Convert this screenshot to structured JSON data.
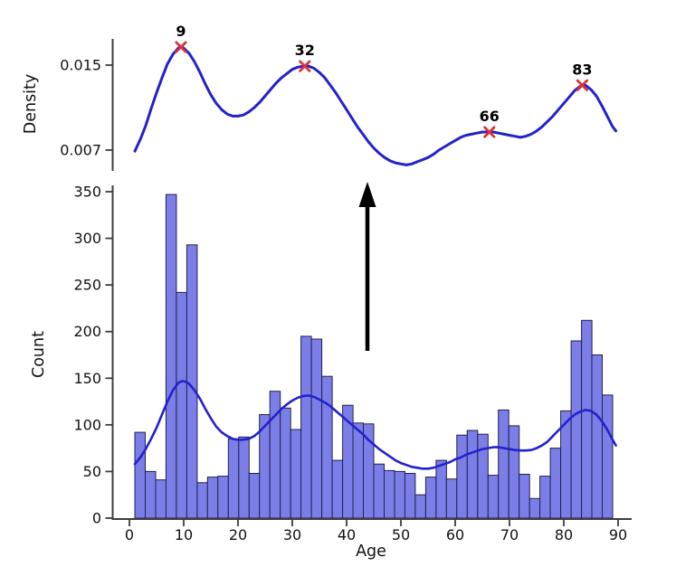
{
  "figure": {
    "background": "#ffffff"
  },
  "annotations": {
    "arrow": {
      "symbol": "up-arrow",
      "direction": "up",
      "color": "#000000"
    }
  },
  "chart_data": [
    {
      "id": "density-kde-plot",
      "type": "line",
      "title": "",
      "xlabel": "",
      "ylabel": "Density",
      "x_range": [
        0,
        90
      ],
      "grid": false,
      "legend": "none",
      "y_ticks": [
        {
          "value": 0.015,
          "label": "0.015"
        },
        {
          "value": 0.007,
          "label": "0.007"
        }
      ],
      "line_color": "#2222cd",
      "marker_color": "#d63636",
      "text_color": "#111111",
      "axis_color": "#3d3d3d",
      "peaks": [
        {
          "x": 9.5,
          "y": 0.0167,
          "label": "9"
        },
        {
          "x": 32.3,
          "y": 0.0149,
          "label": "32"
        },
        {
          "x": 66.3,
          "y": 0.0087,
          "label": "66"
        },
        {
          "x": 83.4,
          "y": 0.0131,
          "label": "83"
        }
      ],
      "points": [
        [
          1,
          0.0069
        ],
        [
          2,
          0.008
        ],
        [
          3,
          0.0093
        ],
        [
          4,
          0.0109
        ],
        [
          5,
          0.0124
        ],
        [
          6,
          0.0138
        ],
        [
          7,
          0.0151
        ],
        [
          8,
          0.016
        ],
        [
          9,
          0.0166
        ],
        [
          9.5,
          0.0167
        ],
        [
          10,
          0.0166
        ],
        [
          11,
          0.0161
        ],
        [
          12,
          0.0153
        ],
        [
          13,
          0.0143
        ],
        [
          14,
          0.0132
        ],
        [
          15,
          0.0122
        ],
        [
          16,
          0.0114
        ],
        [
          17,
          0.0108
        ],
        [
          18,
          0.0104
        ],
        [
          19,
          0.0102
        ],
        [
          20,
          0.0102
        ],
        [
          21,
          0.0103
        ],
        [
          22,
          0.0106
        ],
        [
          23,
          0.011
        ],
        [
          24,
          0.0115
        ],
        [
          25,
          0.0121
        ],
        [
          26,
          0.0127
        ],
        [
          27,
          0.0133
        ],
        [
          28,
          0.0138
        ],
        [
          29,
          0.0142
        ],
        [
          30,
          0.0146
        ],
        [
          31,
          0.0148
        ],
        [
          32,
          0.0149
        ],
        [
          32.5,
          0.01495
        ],
        [
          33,
          0.0149
        ],
        [
          34,
          0.0147
        ],
        [
          35,
          0.0143
        ],
        [
          36,
          0.0138
        ],
        [
          37,
          0.0131
        ],
        [
          38,
          0.0124
        ],
        [
          39,
          0.0116
        ],
        [
          40,
          0.0108
        ],
        [
          41,
          0.01
        ],
        [
          42,
          0.0092
        ],
        [
          43,
          0.0085
        ],
        [
          44,
          0.0078
        ],
        [
          45,
          0.0072
        ],
        [
          46,
          0.0067
        ],
        [
          47,
          0.0063
        ],
        [
          48,
          0.006
        ],
        [
          49,
          0.0058
        ],
        [
          50,
          0.0057
        ],
        [
          51,
          0.0056
        ],
        [
          52,
          0.0057
        ],
        [
          53,
          0.0059
        ],
        [
          54,
          0.0061
        ],
        [
          55,
          0.0063
        ],
        [
          56,
          0.0066
        ],
        [
          57,
          0.007
        ],
        [
          58,
          0.0073
        ],
        [
          59,
          0.0076
        ],
        [
          60,
          0.0079
        ],
        [
          61,
          0.0082
        ],
        [
          62,
          0.0084
        ],
        [
          63,
          0.0085
        ],
        [
          64,
          0.0086
        ],
        [
          65,
          0.0087
        ],
        [
          66,
          0.0087
        ],
        [
          67,
          0.0087
        ],
        [
          68,
          0.0086
        ],
        [
          69,
          0.0085
        ],
        [
          70,
          0.0084
        ],
        [
          71,
          0.0083
        ],
        [
          72,
          0.0082
        ],
        [
          73,
          0.0083
        ],
        [
          74,
          0.0085
        ],
        [
          75,
          0.0088
        ],
        [
          76,
          0.0092
        ],
        [
          77,
          0.0097
        ],
        [
          78,
          0.0102
        ],
        [
          79,
          0.0108
        ],
        [
          80,
          0.0114
        ],
        [
          81,
          0.012
        ],
        [
          82,
          0.0126
        ],
        [
          83,
          0.013
        ],
        [
          83.5,
          0.0131
        ],
        [
          84,
          0.0131
        ],
        [
          85,
          0.0127
        ],
        [
          86,
          0.0121
        ],
        [
          87,
          0.0112
        ],
        [
          88,
          0.0102
        ],
        [
          89,
          0.0092
        ],
        [
          89.6,
          0.0088
        ]
      ]
    },
    {
      "id": "age-histogram",
      "type": "bar",
      "title": "",
      "xlabel": "Age",
      "ylabel": "Count",
      "x_range": [
        0,
        90
      ],
      "ylim": [
        0,
        362
      ],
      "grid": false,
      "legend": "none",
      "x_ticks": [
        0,
        10,
        20,
        30,
        40,
        50,
        60,
        70,
        80,
        90
      ],
      "y_ticks": [
        0,
        50,
        100,
        150,
        200,
        250,
        300,
        350
      ],
      "bins": {
        "start_age": 1,
        "width_years": 1.913
      },
      "counts": [
        92,
        50,
        41,
        347,
        242,
        293,
        38,
        44,
        45,
        85,
        87,
        48,
        111,
        136,
        118,
        95,
        195,
        192,
        152,
        62,
        121,
        102,
        101,
        58,
        51,
        50,
        48,
        25,
        44,
        62,
        42,
        89,
        94,
        90,
        46,
        116,
        99,
        47,
        21,
        45,
        75,
        115,
        190,
        212,
        175,
        132
      ],
      "bar_fill": "#7c7ee8",
      "bar_edge": "#20204e",
      "line_color": "#2222cd",
      "text_color": "#111111",
      "axis_color": "#3d3d3d",
      "kde_points": [
        [
          1,
          58
        ],
        [
          2,
          65
        ],
        [
          3,
          74
        ],
        [
          4,
          85
        ],
        [
          5,
          97
        ],
        [
          6,
          111
        ],
        [
          7,
          125
        ],
        [
          8,
          137
        ],
        [
          9,
          145
        ],
        [
          9.7,
          147
        ],
        [
          10.5,
          146
        ],
        [
          11,
          144
        ],
        [
          12,
          137
        ],
        [
          13,
          128
        ],
        [
          14,
          117
        ],
        [
          15,
          107
        ],
        [
          16,
          98
        ],
        [
          17,
          92
        ],
        [
          18,
          88
        ],
        [
          19,
          85
        ],
        [
          20,
          84
        ],
        [
          20.8,
          84
        ],
        [
          22,
          85
        ],
        [
          23,
          88
        ],
        [
          24,
          93
        ],
        [
          25,
          99
        ],
        [
          26,
          105
        ],
        [
          27,
          111
        ],
        [
          28,
          117
        ],
        [
          29,
          122
        ],
        [
          30,
          126
        ],
        [
          31,
          129
        ],
        [
          32,
          131
        ],
        [
          33,
          131.5
        ],
        [
          34,
          130
        ],
        [
          35,
          127
        ],
        [
          36,
          124
        ],
        [
          37,
          120
        ],
        [
          38,
          115
        ],
        [
          39,
          110
        ],
        [
          40,
          105
        ],
        [
          41,
          100
        ],
        [
          42,
          95
        ],
        [
          43,
          90
        ],
        [
          44,
          84
        ],
        [
          45,
          79
        ],
        [
          46,
          74
        ],
        [
          47,
          70
        ],
        [
          48,
          66
        ],
        [
          49,
          62
        ],
        [
          50,
          59
        ],
        [
          51,
          57
        ],
        [
          52,
          55
        ],
        [
          53,
          54
        ],
        [
          54,
          53
        ],
        [
          55,
          53
        ],
        [
          56,
          54
        ],
        [
          57,
          56
        ],
        [
          58,
          58
        ],
        [
          59,
          60
        ],
        [
          60,
          63
        ],
        [
          61,
          65
        ],
        [
          62,
          68
        ],
        [
          63,
          70
        ],
        [
          64,
          72
        ],
        [
          65,
          74
        ],
        [
          66,
          75
        ],
        [
          67,
          76
        ],
        [
          68,
          76
        ],
        [
          69,
          75
        ],
        [
          70,
          74
        ],
        [
          71,
          73
        ],
        [
          72,
          72.5
        ],
        [
          73,
          72.5
        ],
        [
          74,
          73
        ],
        [
          75,
          75
        ],
        [
          76,
          78
        ],
        [
          77,
          82
        ],
        [
          78,
          88
        ],
        [
          79,
          94
        ],
        [
          80,
          100
        ],
        [
          81,
          106
        ],
        [
          82,
          111
        ],
        [
          83,
          114
        ],
        [
          84,
          116
        ],
        [
          85,
          115
        ],
        [
          86,
          111
        ],
        [
          87,
          104
        ],
        [
          88,
          95
        ],
        [
          89,
          84
        ],
        [
          89.6,
          78
        ]
      ]
    }
  ]
}
